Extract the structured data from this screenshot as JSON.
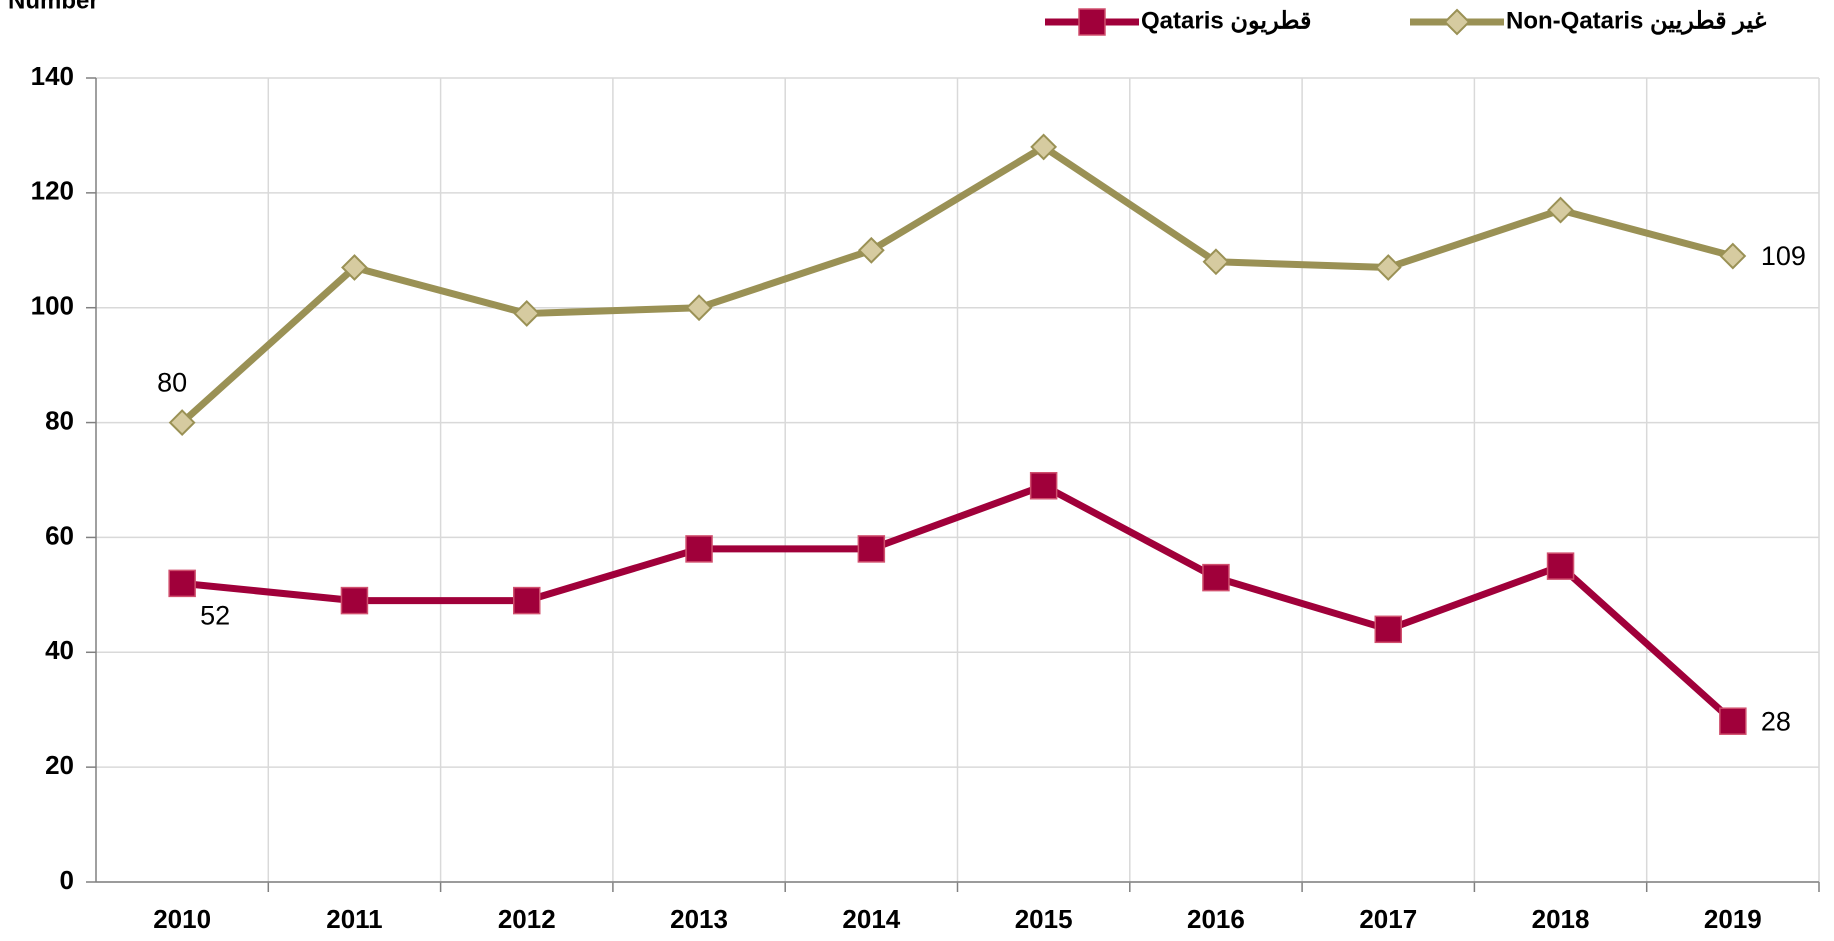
{
  "chart_data": {
    "type": "line",
    "y_label": "Number",
    "categories": [
      "2010",
      "2011",
      "2012",
      "2013",
      "2014",
      "2015",
      "2016",
      "2017",
      "2018",
      "2019"
    ],
    "series": [
      {
        "name": "Qataris قطريون",
        "color": "#a0003a",
        "marker": "square",
        "values": [
          52,
          49,
          49,
          58,
          58,
          69,
          53,
          44,
          55,
          28
        ],
        "label_points": [
          0,
          9
        ]
      },
      {
        "name": "Non-Qataris غير قطريين",
        "color": "#9a9155",
        "marker": "diamond",
        "values": [
          80,
          107,
          99,
          100,
          110,
          128,
          108,
          107,
          117,
          109
        ],
        "label_points": [
          0,
          9
        ]
      }
    ],
    "ylim": [
      0,
      140
    ],
    "yticks": [
      0,
      20,
      40,
      60,
      80,
      100,
      120,
      140
    ],
    "grid": true,
    "legend": "top"
  }
}
